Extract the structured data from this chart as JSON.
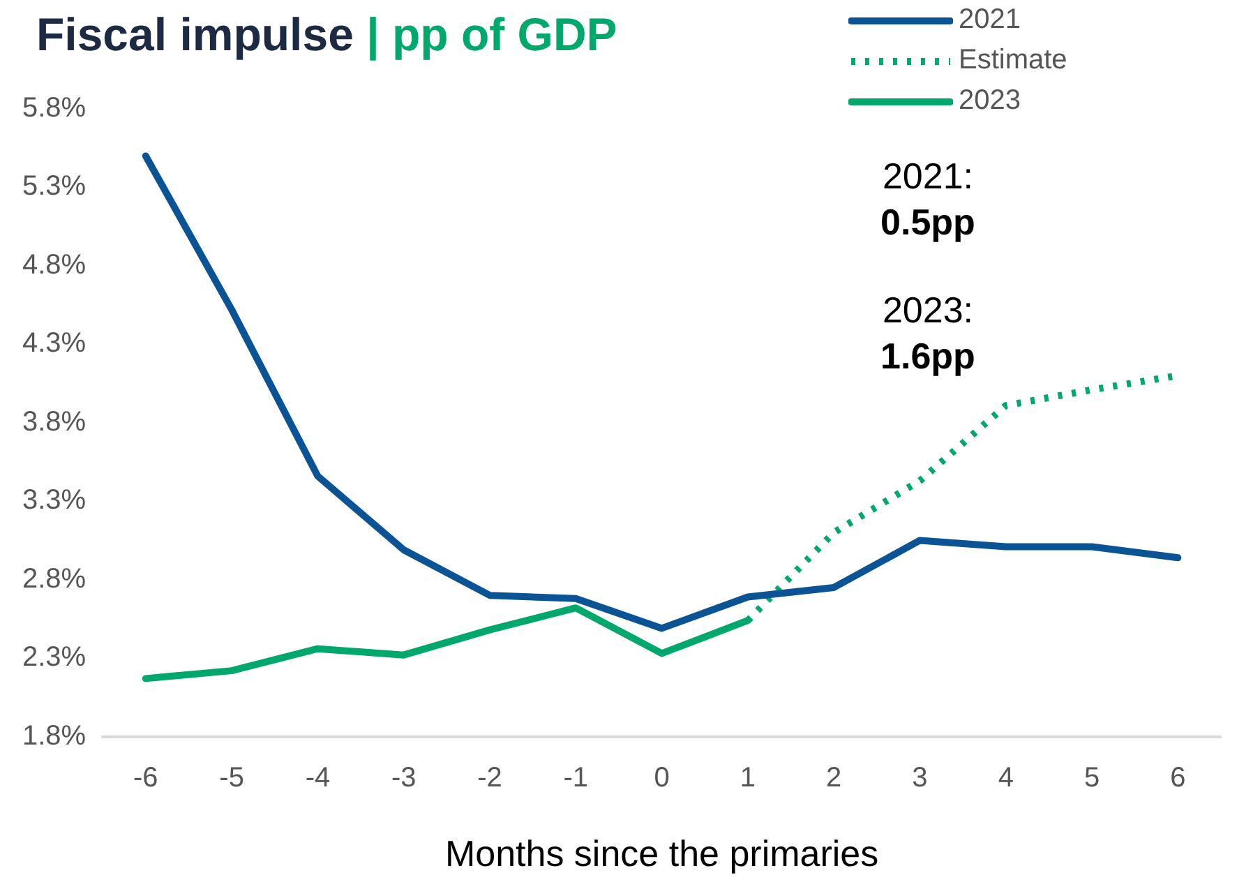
{
  "chart_data": {
    "type": "line",
    "title": "Fiscal impulse",
    "subtitle": "| pp of GDP",
    "xlabel": "Months since the primaries",
    "categories": [
      "-6",
      "-5",
      "-4",
      "-3",
      "-2",
      "-1",
      "0",
      "1",
      "2",
      "3",
      "4",
      "5",
      "6"
    ],
    "series": [
      {
        "name": "2021",
        "color": "#0a5394",
        "values": [
          5.5,
          4.52,
          3.46,
          2.99,
          2.7,
          2.68,
          2.49,
          2.69,
          2.75,
          3.05,
          3.01,
          3.01,
          2.94
        ]
      },
      {
        "name": "Estimate",
        "color": "#00a86b",
        "line_style": "dotted",
        "values": [
          null,
          null,
          null,
          null,
          null,
          null,
          null,
          2.54,
          3.1,
          3.43,
          3.91,
          4.01,
          4.1
        ]
      },
      {
        "name": "2023",
        "color": "#00a86b",
        "values": [
          2.17,
          2.22,
          2.36,
          2.32,
          2.48,
          2.62,
          2.33,
          2.54,
          null,
          null,
          null,
          null,
          null
        ]
      }
    ],
    "ylim": [
      1.8,
      5.8
    ],
    "yticks": [
      {
        "value": 1.8,
        "label": "1.8%"
      },
      {
        "value": 2.3,
        "label": "2.3%"
      },
      {
        "value": 2.8,
        "label": "2.8%"
      },
      {
        "value": 3.3,
        "label": "3.3%"
      },
      {
        "value": 3.8,
        "label": "3.8%"
      },
      {
        "value": 4.3,
        "label": "4.3%"
      },
      {
        "value": 4.8,
        "label": "4.8%"
      },
      {
        "value": 5.3,
        "label": "5.3%"
      },
      {
        "value": 5.8,
        "label": "5.8%"
      }
    ],
    "annotations": [
      "2021:",
      "0.5pp",
      "2023:",
      "1.6pp"
    ],
    "grid": false,
    "legend": "top right",
    "marker": "none",
    "line_style": "solid"
  }
}
